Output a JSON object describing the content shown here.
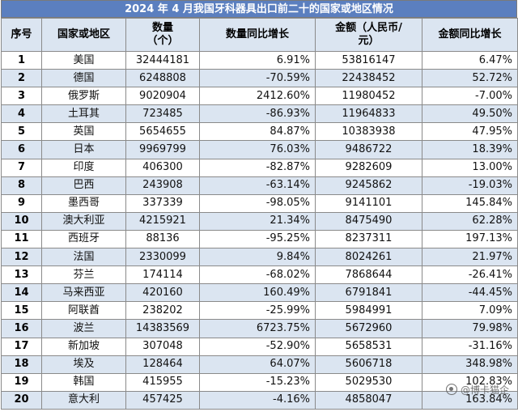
{
  "title": "2024 年 4 月我国牙科器具出口前二十的国家或地区情况",
  "headers": {
    "rank": "序号",
    "country": "国家或地区",
    "quantity": "数量\n（个）",
    "quantity_yoy": "数量同比增长",
    "amount": "金额（人民币/\n元）",
    "amount_yoy": "金额同比增长"
  },
  "rows": [
    {
      "rank": "1",
      "country": "美国",
      "quantity": "32444181",
      "quantity_yoy": "6.91%",
      "amount": "53816147",
      "amount_yoy": "6.47%"
    },
    {
      "rank": "2",
      "country": "德国",
      "quantity": "6248808",
      "quantity_yoy": "-70.59%",
      "amount": "22438452",
      "amount_yoy": "52.72%"
    },
    {
      "rank": "3",
      "country": "俄罗斯",
      "quantity": "9020904",
      "quantity_yoy": "2412.60%",
      "amount": "11980452",
      "amount_yoy": "-7.00%"
    },
    {
      "rank": "4",
      "country": "土耳其",
      "quantity": "723485",
      "quantity_yoy": "-86.93%",
      "amount": "11964833",
      "amount_yoy": "49.50%"
    },
    {
      "rank": "5",
      "country": "英国",
      "quantity": "5654655",
      "quantity_yoy": "84.87%",
      "amount": "10383938",
      "amount_yoy": "47.95%"
    },
    {
      "rank": "6",
      "country": "日本",
      "quantity": "9969799",
      "quantity_yoy": "76.03%",
      "amount": "9486722",
      "amount_yoy": "18.39%"
    },
    {
      "rank": "7",
      "country": "印度",
      "quantity": "406300",
      "quantity_yoy": "-82.87%",
      "amount": "9282609",
      "amount_yoy": "13.00%"
    },
    {
      "rank": "8",
      "country": "巴西",
      "quantity": "243908",
      "quantity_yoy": "-63.14%",
      "amount": "9245862",
      "amount_yoy": "-19.03%"
    },
    {
      "rank": "9",
      "country": "墨西哥",
      "quantity": "337339",
      "quantity_yoy": "-98.05%",
      "amount": "9141101",
      "amount_yoy": "145.84%"
    },
    {
      "rank": "10",
      "country": "澳大利亚",
      "quantity": "4215921",
      "quantity_yoy": "21.34%",
      "amount": "8475490",
      "amount_yoy": "62.28%"
    },
    {
      "rank": "11",
      "country": "西班牙",
      "quantity": "88136",
      "quantity_yoy": "-95.25%",
      "amount": "8237311",
      "amount_yoy": "197.13%"
    },
    {
      "rank": "12",
      "country": "法国",
      "quantity": "2330099",
      "quantity_yoy": "9.84%",
      "amount": "8024261",
      "amount_yoy": "21.97%"
    },
    {
      "rank": "13",
      "country": "芬兰",
      "quantity": "174114",
      "quantity_yoy": "-68.02%",
      "amount": "7868644",
      "amount_yoy": "-26.41%"
    },
    {
      "rank": "14",
      "country": "马来西亚",
      "quantity": "420160",
      "quantity_yoy": "160.49%",
      "amount": "6791841",
      "amount_yoy": "-44.45%"
    },
    {
      "rank": "15",
      "country": "阿联酋",
      "quantity": "238202",
      "quantity_yoy": "-25.99%",
      "amount": "5984991",
      "amount_yoy": "7.09%"
    },
    {
      "rank": "16",
      "country": "波兰",
      "quantity": "14383569",
      "quantity_yoy": "6723.75%",
      "amount": "5672960",
      "amount_yoy": "79.98%"
    },
    {
      "rank": "17",
      "country": "新加坡",
      "quantity": "307048",
      "quantity_yoy": "-52.90%",
      "amount": "5658531",
      "amount_yoy": "-31.16%"
    },
    {
      "rank": "18",
      "country": "埃及",
      "quantity": "128464",
      "quantity_yoy": "64.07%",
      "amount": "5606718",
      "amount_yoy": "348.98%"
    },
    {
      "rank": "19",
      "country": "韩国",
      "quantity": "415955",
      "quantity_yoy": "-15.23%",
      "amount": "5029530",
      "amount_yoy": "102.83%"
    },
    {
      "rank": "20",
      "country": "意大利",
      "quantity": "457425",
      "quantity_yoy": "-4.16%",
      "amount": "4858047",
      "amount_yoy": "163.84%"
    }
  ],
  "watermark": "@博卡猫企",
  "colors": {
    "title_bg": "#5b7fbf",
    "header_bg": "#dbe5f1",
    "stripe_bg": "#dbe5f1"
  }
}
